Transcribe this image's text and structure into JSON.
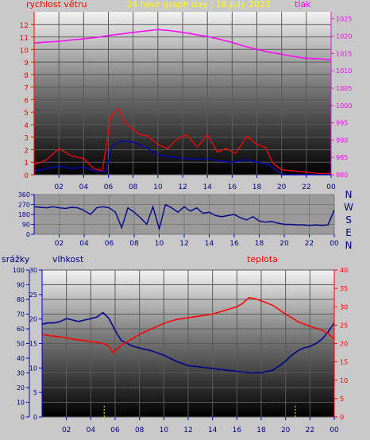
{
  "chart_data": [
    {
      "type": "line",
      "title": "24 hour graph day : 18.July 2023",
      "left_axis_label": "rychlost větru",
      "right_axis_label": "tlak",
      "x_ticks": [
        "02",
        "04",
        "06",
        "08",
        "10",
        "12",
        "14",
        "16",
        "18",
        "20",
        "22",
        "00"
      ],
      "left_ticks": [
        "0",
        "1",
        "2",
        "3",
        "4",
        "5",
        "6",
        "7",
        "8",
        "9",
        "10",
        "11",
        "12"
      ],
      "right_ticks": [
        "980",
        "985",
        "990",
        "995",
        "1000",
        "1005",
        "1010",
        "1015",
        "1020",
        "1025"
      ],
      "xlim": [
        0,
        24
      ],
      "ylim_left": [
        0,
        13
      ],
      "ylim_right": [
        980,
        1027
      ],
      "series": [
        {
          "axis": "right",
          "color": "#ff00ff",
          "x": [
            0,
            1,
            2,
            3,
            4,
            5,
            6,
            7,
            8,
            9,
            10,
            11,
            12,
            13,
            14,
            15,
            16,
            17,
            18,
            19,
            20,
            21,
            22,
            23,
            24
          ],
          "y": [
            1018,
            1018.3,
            1018.5,
            1018.9,
            1019.2,
            1019.6,
            1020.2,
            1020.6,
            1021.1,
            1021.5,
            1021.9,
            1021.6,
            1021.1,
            1020.5,
            1019.9,
            1019.1,
            1018.2,
            1017.1,
            1016.2,
            1015.4,
            1014.8,
            1014.1,
            1013.6,
            1013.5,
            1013.1
          ]
        },
        {
          "axis": "left",
          "color": "#ff0000",
          "x": [
            0,
            1,
            2,
            3,
            4,
            4.8,
            5.5,
            6.2,
            6.8,
            7.3,
            8,
            8.6,
            9.2,
            10,
            10.8,
            11.5,
            12.3,
            13.2,
            14,
            14.8,
            15.5,
            16.3,
            17.2,
            18,
            18.7,
            19.3,
            20,
            21,
            22,
            23,
            24
          ],
          "y": [
            0.8,
            1.2,
            2.1,
            1.5,
            1.3,
            0.5,
            0.3,
            4.6,
            5.3,
            4.2,
            3.6,
            3.2,
            3.1,
            2.4,
            2.1,
            2.8,
            3.2,
            2.2,
            3.2,
            1.8,
            2.1,
            1.7,
            3.1,
            2.4,
            2.2,
            0.9,
            0.4,
            0.3,
            0.2,
            0.1,
            0.1
          ]
        },
        {
          "axis": "left",
          "color": "#0000cc",
          "x": [
            0,
            1,
            2,
            3,
            4,
            5,
            5.8,
            6.3,
            7,
            8,
            9,
            10,
            11,
            12,
            13,
            14,
            15,
            16,
            17,
            18,
            19,
            19.5,
            20,
            22,
            24
          ],
          "y": [
            0.3,
            0.5,
            0.7,
            0.5,
            0.6,
            0.3,
            0.2,
            2.3,
            2.7,
            2.6,
            2.2,
            1.6,
            1.4,
            1.3,
            1.2,
            1.3,
            1.1,
            1.0,
            1.2,
            1.0,
            0.8,
            0.4,
            0,
            0,
            0
          ]
        }
      ]
    },
    {
      "type": "line",
      "title": "",
      "left_ticks": [
        "0",
        "90",
        "180",
        "270",
        "360"
      ],
      "right_labels": [
        "N",
        "W",
        "S",
        "E",
        "N"
      ],
      "x_ticks": [
        "02",
        "04",
        "06",
        "08",
        "10",
        "12",
        "14",
        "16",
        "18",
        "20",
        "22",
        "00"
      ],
      "xlim": [
        0,
        24
      ],
      "ylim": [
        0,
        360
      ],
      "series": [
        {
          "color": "#00008b",
          "x": [
            0,
            0.5,
            1,
            1.5,
            2,
            2.5,
            3,
            3.5,
            4,
            4.5,
            5,
            5.5,
            6,
            6.5,
            7,
            7.5,
            8,
            8.5,
            9,
            9.5,
            10,
            10.5,
            11,
            11.5,
            12,
            12.5,
            13,
            13.5,
            14,
            14.5,
            15,
            15.5,
            16,
            16.5,
            17,
            17.5,
            18,
            18.5,
            19,
            19.5,
            20,
            20.5,
            21,
            21.5,
            22,
            22.5,
            23,
            23.5,
            24
          ],
          "y": [
            250,
            245,
            240,
            250,
            240,
            235,
            245,
            240,
            215,
            180,
            240,
            250,
            240,
            200,
            60,
            240,
            200,
            150,
            90,
            250,
            50,
            270,
            240,
            200,
            250,
            210,
            240,
            190,
            200,
            170,
            160,
            170,
            180,
            150,
            130,
            160,
            120,
            110,
            115,
            100,
            90,
            90,
            85,
            85,
            80,
            85,
            80,
            85,
            220
          ]
        }
      ]
    },
    {
      "type": "line",
      "title": "",
      "left_outer_label": "srážky",
      "left_inner_label": "vlhkost",
      "right_label": "teplota",
      "outer_ticks": [
        "0",
        "10",
        "20",
        "30",
        "40",
        "50",
        "60",
        "70",
        "80",
        "90",
        "100"
      ],
      "inner_ticks": [
        "0",
        "5",
        "10",
        "15",
        "20",
        "25",
        "30"
      ],
      "right_ticks": [
        "0",
        "5",
        "10",
        "15",
        "20",
        "25",
        "30",
        "35",
        "40"
      ],
      "x_ticks": [
        "02",
        "04",
        "06",
        "08",
        "10",
        "12",
        "14",
        "16",
        "18",
        "20",
        "22",
        "00"
      ],
      "xlim": [
        0,
        24
      ],
      "ylim_outer": [
        0,
        100
      ],
      "ylim_inner": [
        0,
        30
      ],
      "ylim_right": [
        0,
        40
      ],
      "series": [
        {
          "axis": "outer",
          "color": "#00008b",
          "x": [
            0,
            0.5,
            1,
            1.5,
            2,
            2.5,
            3,
            3.5,
            4,
            4.5,
            5,
            5.5,
            6,
            6.5,
            7,
            7.5,
            8,
            9,
            10,
            11,
            12,
            13,
            14,
            15,
            16,
            17,
            18,
            19,
            20,
            20.5,
            21,
            21.5,
            22,
            22.5,
            23,
            23.5,
            24
          ],
          "y": [
            63,
            64,
            64,
            65,
            67,
            66,
            65,
            66,
            67,
            68,
            71,
            67,
            59,
            52,
            50,
            48,
            47,
            45,
            42,
            38,
            35,
            34,
            33,
            32,
            31,
            30,
            30,
            32,
            38,
            42,
            45,
            47,
            48,
            50,
            53,
            58,
            64
          ]
        },
        {
          "axis": "right",
          "color": "#ff0000",
          "x": [
            0,
            0.5,
            1,
            1.5,
            2,
            2.5,
            3,
            3.5,
            4,
            4.5,
            5,
            5.5,
            5.8,
            6.3,
            7,
            8,
            9,
            10,
            11,
            12,
            13,
            14,
            15,
            15.5,
            16,
            16.5,
            17,
            17.5,
            18,
            18.5,
            19,
            20,
            20.5,
            21,
            21.5,
            22,
            22.5,
            23,
            23.5,
            24
          ],
          "y": [
            22.5,
            22.2,
            22,
            21.8,
            21.5,
            21.2,
            21,
            20.8,
            20.5,
            20.3,
            20,
            19.3,
            17.5,
            19,
            20.5,
            22.5,
            24,
            25.5,
            26.5,
            27,
            27.5,
            28,
            29,
            29.5,
            30,
            31,
            32.5,
            32.2,
            31.6,
            31,
            30.3,
            28,
            27,
            26,
            25.3,
            24.7,
            24.2,
            23.6,
            22.7,
            21.2
          ]
        },
        {
          "axis": "outer",
          "color": "#ffff00",
          "type": "bar",
          "x": [
            5.1,
            20.8
          ],
          "y": [
            8,
            8
          ]
        }
      ]
    }
  ]
}
